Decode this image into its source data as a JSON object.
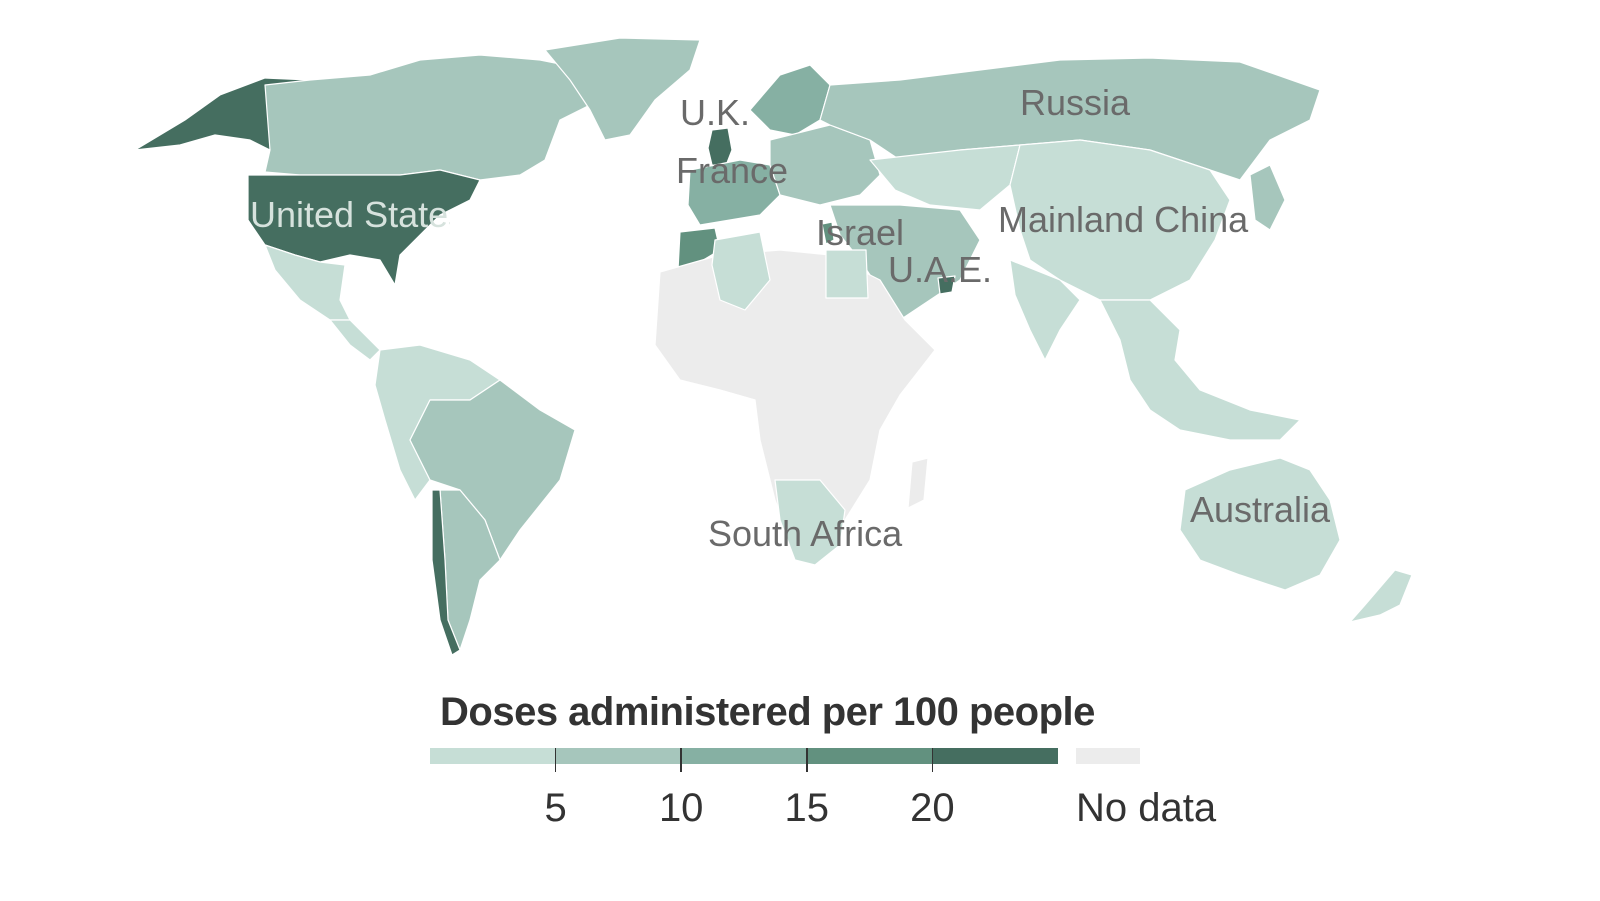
{
  "map": {
    "scale": {
      "colors": [
        "#c6ded6",
        "#a6c6bc",
        "#86b0a3",
        "#62917f",
        "#456e60"
      ],
      "no_data_color": "#ececec"
    },
    "regions": [
      {
        "name": "Alaska",
        "color": "#456e60"
      },
      {
        "name": "Canada",
        "color": "#a6c6bc"
      },
      {
        "name": "Greenland",
        "color": "#a6c6bc"
      },
      {
        "name": "United States",
        "color": "#456e60"
      },
      {
        "name": "Mexico",
        "color": "#c6ded6"
      },
      {
        "name": "Central America",
        "color": "#c6ded6"
      },
      {
        "name": "South America north",
        "color": "#c6ded6"
      },
      {
        "name": "Brazil",
        "color": "#a6c6bc"
      },
      {
        "name": "Argentina",
        "color": "#a6c6bc"
      },
      {
        "name": "Chile",
        "color": "#456e60"
      },
      {
        "name": "Northern Europe",
        "color": "#86b0a3"
      },
      {
        "name": "U.K.",
        "color": "#456e60"
      },
      {
        "name": "Western Europe",
        "color": "#86b0a3"
      },
      {
        "name": "Central Europe",
        "color": "#a6c6bc"
      },
      {
        "name": "Morocco",
        "color": "#62917f"
      },
      {
        "name": "Russia",
        "color": "#a6c6bc"
      },
      {
        "name": "Central Asia",
        "color": "#c6ded6"
      },
      {
        "name": "Mainland China",
        "color": "#c6ded6"
      },
      {
        "name": "India",
        "color": "#c6ded6"
      },
      {
        "name": "Southeast Asia",
        "color": "#c6ded6"
      },
      {
        "name": "Middle East",
        "color": "#a6c6bc"
      },
      {
        "name": "U.A.E.",
        "color": "#456e60"
      },
      {
        "name": "Israel",
        "color": "#62917f"
      },
      {
        "name": "Africa",
        "color": "#ececec"
      },
      {
        "name": "Algeria",
        "color": "#c6ded6"
      },
      {
        "name": "Egypt",
        "color": "#c6ded6"
      },
      {
        "name": "Southern Africa",
        "color": "#c6ded6"
      },
      {
        "name": "Madagascar",
        "color": "#ececec"
      },
      {
        "name": "Australia",
        "color": "#c6ded6"
      },
      {
        "name": "New Zealand",
        "color": "#c6ded6"
      },
      {
        "name": "Japan",
        "color": "#a6c6bc"
      }
    ],
    "labels": [
      {
        "text": "U.K.",
        "on_dark": false
      },
      {
        "text": "France",
        "on_dark": false
      },
      {
        "text": "Russia",
        "on_dark": false
      },
      {
        "text": "United States",
        "on_dark": true
      },
      {
        "text": "Mainland China",
        "on_dark": false
      },
      {
        "text": "Israel",
        "on_dark": false
      },
      {
        "text": "U.A.E.",
        "on_dark": false
      },
      {
        "text": "South Africa",
        "on_dark": false
      },
      {
        "text": "Australia",
        "on_dark": false
      }
    ]
  },
  "legend": {
    "title": "Doses administered per 100 people",
    "ticks": [
      "5",
      "10",
      "15",
      "20"
    ],
    "no_data_label": "No data"
  }
}
